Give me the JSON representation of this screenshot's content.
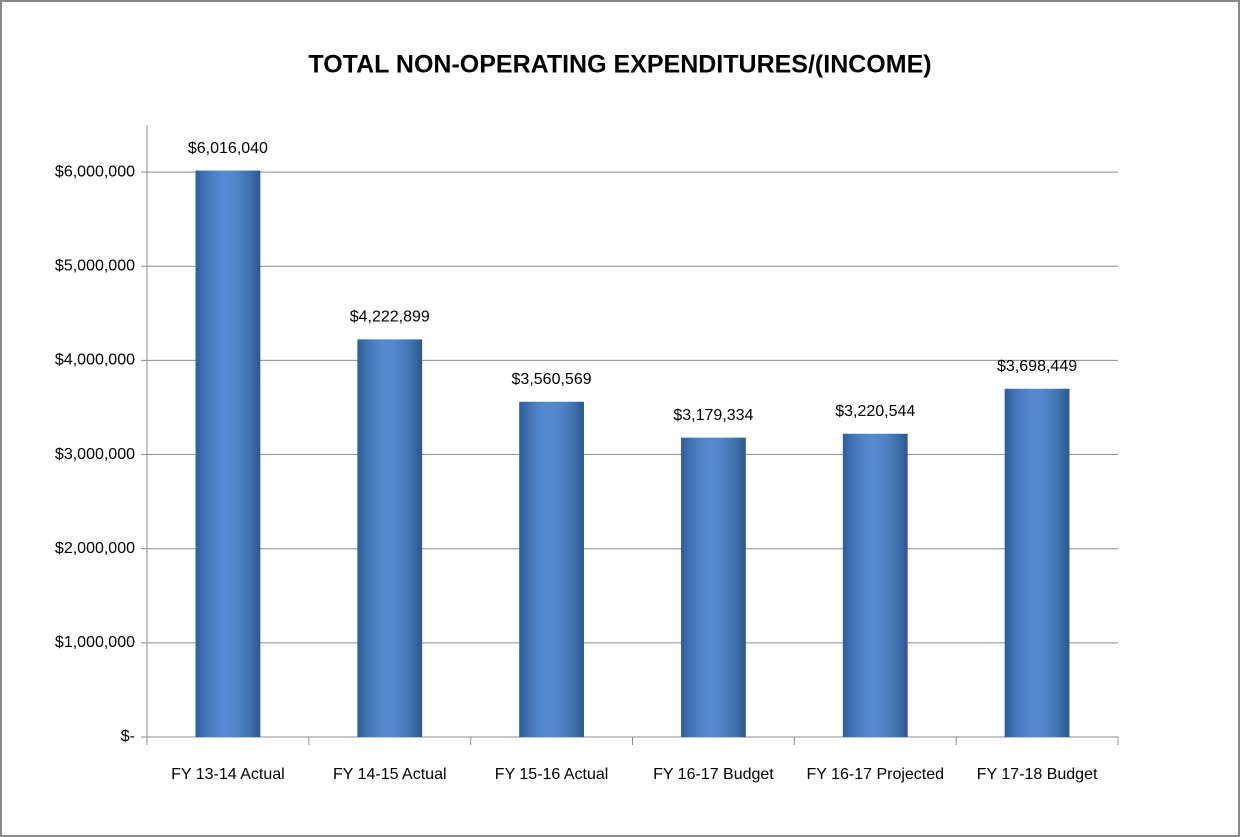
{
  "chart_data": {
    "type": "bar",
    "title": "TOTAL NON-OPERATING EXPENDITURES/(INCOME)",
    "categories": [
      "FY 13-14 Actual",
      "FY 14-15 Actual",
      "FY 15-16 Actual",
      "FY 16-17 Budget",
      "FY 16-17 Projected",
      "FY 17-18 Budget"
    ],
    "values": [
      6016040,
      4222899,
      3560569,
      3179334,
      3220544,
      3698449
    ],
    "value_labels": [
      "$6,016,040",
      "$4,222,899",
      "$3,560,569",
      "$3,179,334",
      "$3,220,544",
      "$3,698,449"
    ],
    "color": "#3c7bcc",
    "ylim": [
      0,
      6500000
    ],
    "yticks": [
      {
        "value": 0,
        "label": "$-"
      },
      {
        "value": 1000000,
        "label": "$1,000,000"
      },
      {
        "value": 2000000,
        "label": "$2,000,000"
      },
      {
        "value": 3000000,
        "label": "$3,000,000"
      },
      {
        "value": 4000000,
        "label": "$4,000,000"
      },
      {
        "value": 5000000,
        "label": "$5,000,000"
      },
      {
        "value": 6000000,
        "label": "$6,000,000"
      }
    ],
    "grid": true
  }
}
